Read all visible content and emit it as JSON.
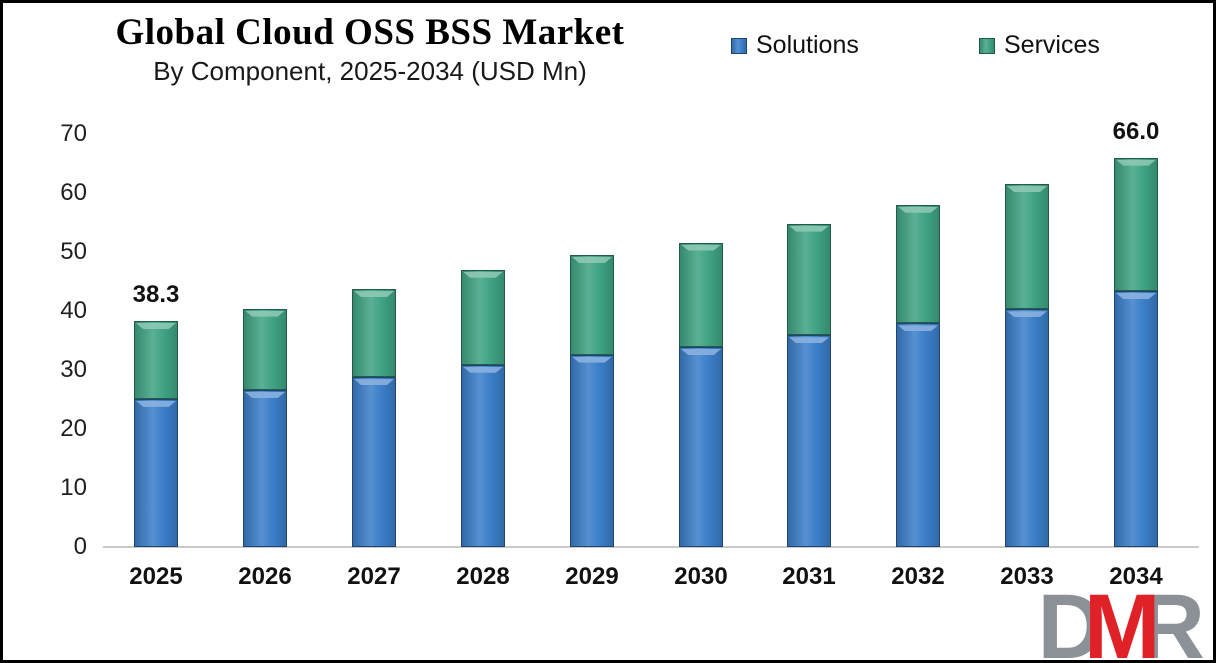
{
  "header": {
    "title": "Global Cloud OSS BSS Market",
    "subtitle": "By Component, 2025-2034 (USD Mn)"
  },
  "legend": [
    {
      "label": "Solutions",
      "color": "#3b7ec9"
    },
    {
      "label": "Services",
      "color": "#3fa383"
    }
  ],
  "chart_data": {
    "type": "bar",
    "stacked": true,
    "title": "Global Cloud OSS BSS Market",
    "subtitle": "By Component, 2025-2034 (USD Mn)",
    "categories": [
      "2025",
      "2026",
      "2027",
      "2028",
      "2029",
      "2030",
      "2031",
      "2032",
      "2033",
      "2034"
    ],
    "series": [
      {
        "name": "Solutions",
        "color": "#3b7ec9",
        "values": [
          25.1,
          26.6,
          28.8,
          30.9,
          32.6,
          33.9,
          35.9,
          37.9,
          40.3,
          43.4
        ]
      },
      {
        "name": "Services",
        "color": "#3fa383",
        "values": [
          13.2,
          13.8,
          14.9,
          16.1,
          16.9,
          17.7,
          18.9,
          20.1,
          21.2,
          22.6
        ]
      }
    ],
    "totals": [
      38.3,
      40.4,
      43.7,
      47.0,
      49.5,
      51.6,
      54.8,
      58.0,
      61.5,
      66.0
    ],
    "point_labels": [
      "38.3",
      "",
      "",
      "",
      "",
      "",
      "",
      "",
      "",
      "66.0"
    ],
    "xlabel": "",
    "ylabel": "",
    "ylim": [
      0,
      70
    ],
    "yticks": [
      0,
      10,
      20,
      30,
      40,
      50,
      60,
      70
    ],
    "grid": false,
    "legend_position": "top-right",
    "axis_line_color": "#c9c9c9"
  },
  "logo": {
    "letters": [
      {
        "char": "D",
        "color": "#8b9196"
      },
      {
        "char": "M",
        "color": "#e02127"
      },
      {
        "char": "R",
        "color": "#8b9196"
      }
    ]
  }
}
